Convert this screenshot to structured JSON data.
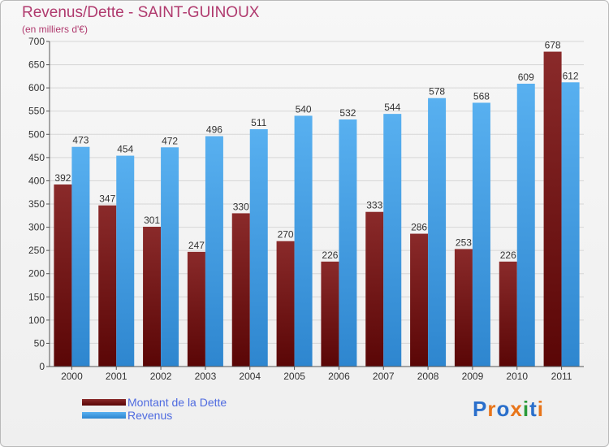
{
  "chart_data": {
    "type": "bar",
    "title": "Revenus/Dette - SAINT-GUINOUX",
    "subtitle": "(en milliers d'€)",
    "categories": [
      "2000",
      "2001",
      "2002",
      "2003",
      "2004",
      "2005",
      "2006",
      "2007",
      "2008",
      "2009",
      "2010",
      "2011"
    ],
    "series": [
      {
        "name": "Montant de la Dette",
        "values": [
          392,
          347,
          301,
          247,
          330,
          270,
          226,
          333,
          286,
          253,
          226,
          678
        ]
      },
      {
        "name": "Revenus",
        "values": [
          473,
          454,
          472,
          496,
          511,
          540,
          532,
          544,
          578,
          568,
          609,
          612
        ]
      }
    ],
    "ylim": [
      0,
      700
    ],
    "yticks": [
      0,
      50,
      100,
      150,
      200,
      250,
      300,
      350,
      400,
      450,
      500,
      550,
      600,
      650,
      700
    ],
    "grid": true,
    "legend_position": "bottom-left",
    "colors": {
      "dette": "#7a1a1a",
      "revenus": "#4aa3e8"
    }
  },
  "logo": {
    "text": "Proxiti",
    "letter_colors": [
      "#2a6fcb",
      "#e8751a",
      "#2a6fcb",
      "#e8751a",
      "#2a9a3a",
      "#2a6fcb",
      "#e8751a"
    ]
  }
}
